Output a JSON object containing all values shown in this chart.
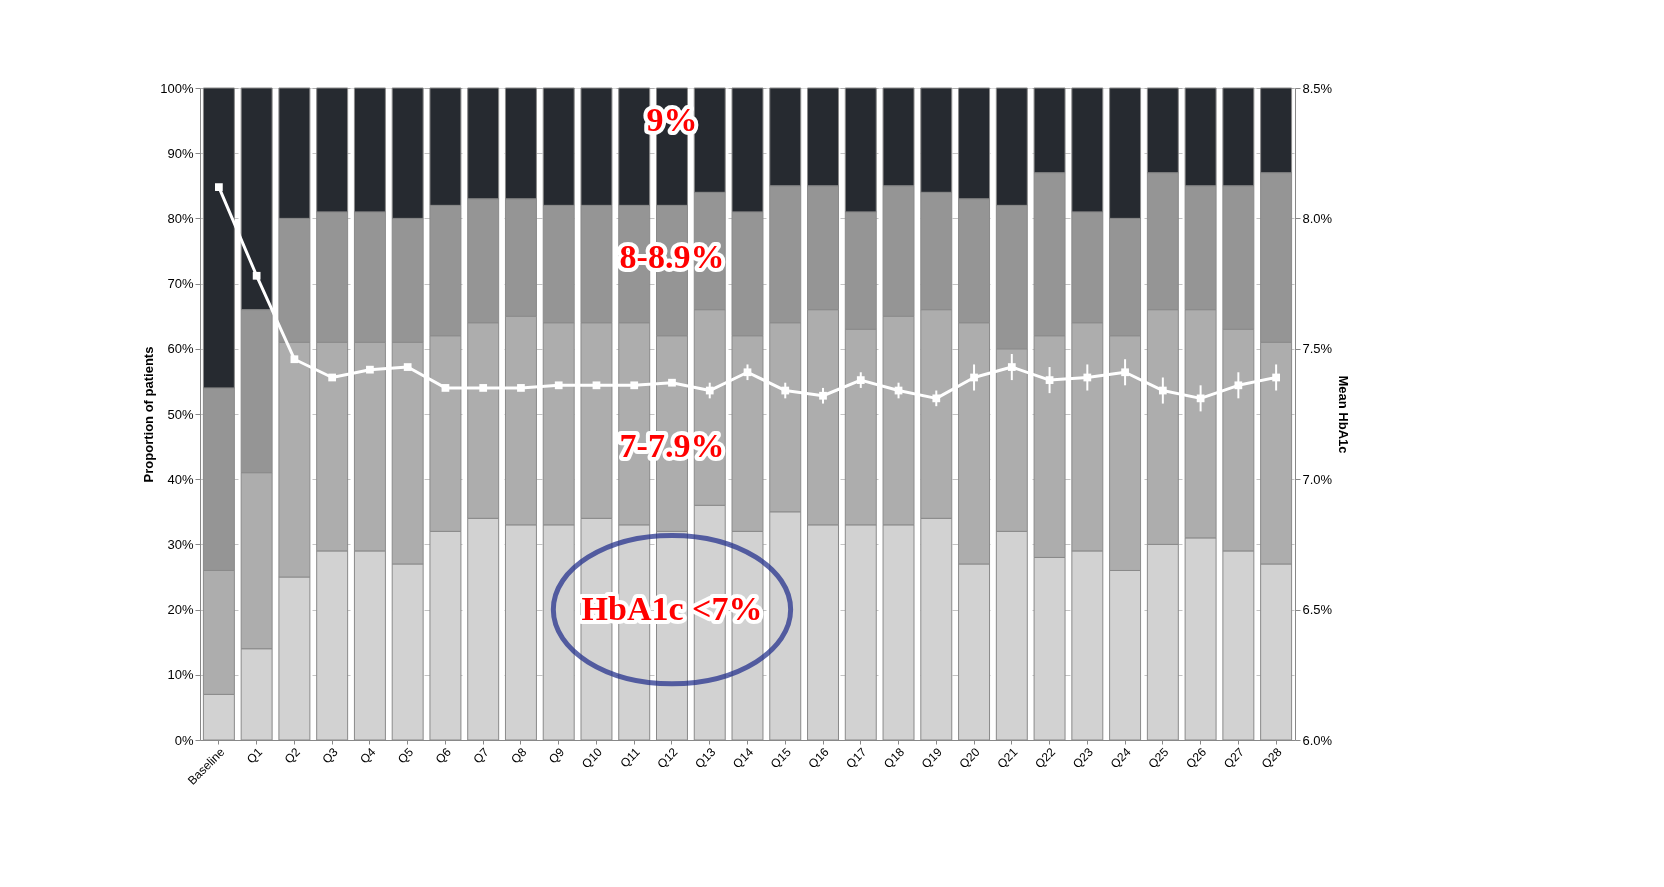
{
  "chart_data": {
    "type": "bar",
    "stacked": true,
    "xlabel": null,
    "ylabel": "Proportion of patients",
    "y2label": "Mean HbA1c",
    "categories": [
      "Baseline",
      "Q1",
      "Q2",
      "Q3",
      "Q4",
      "Q5",
      "Q6",
      "Q7",
      "Q8",
      "Q9",
      "Q10",
      "Q11",
      "Q12",
      "Q13",
      "Q14",
      "Q15",
      "Q16",
      "Q17",
      "Q18",
      "Q19",
      "Q20",
      "Q21",
      "Q22",
      "Q23",
      "Q24",
      "Q25",
      "Q26",
      "Q27",
      "Q28"
    ],
    "series": [
      {
        "color": "#d2d2d2",
        "values": [
          7,
          14,
          25,
          29,
          29,
          27,
          32,
          34,
          33,
          33,
          34,
          33,
          32,
          36,
          32,
          35,
          33,
          33,
          33,
          34,
          27,
          32,
          28,
          29,
          26,
          30,
          31,
          29,
          27
        ]
      },
      {
        "color": "#adadad",
        "values": [
          19,
          27,
          36,
          32,
          32,
          34,
          30,
          30,
          32,
          31,
          30,
          31,
          30,
          30,
          30,
          29,
          33,
          30,
          32,
          32,
          37,
          28,
          34,
          35,
          36,
          36,
          35,
          34,
          34
        ]
      },
      {
        "color": "#959595",
        "values": [
          28,
          25,
          19,
          20,
          20,
          19,
          20,
          19,
          18,
          18,
          18,
          18,
          20,
          18,
          19,
          21,
          19,
          18,
          20,
          18,
          19,
          22,
          25,
          17,
          18,
          21,
          19,
          22,
          26
        ]
      },
      {
        "color": "#262a30",
        "values": [
          46,
          34,
          20,
          19,
          19,
          20,
          18,
          17,
          17,
          18,
          18,
          18,
          18,
          16,
          19,
          15,
          15,
          19,
          15,
          16,
          17,
          18,
          13,
          19,
          20,
          13,
          15,
          15,
          13
        ]
      },
      {
        "type": "line",
        "axis": "y2",
        "color": "#ffffff",
        "marker": "square",
        "values": [
          8.12,
          7.78,
          7.46,
          7.39,
          7.42,
          7.43,
          7.35,
          7.35,
          7.35,
          7.36,
          7.36,
          7.36,
          7.37,
          7.34,
          7.41,
          7.34,
          7.32,
          7.38,
          7.34,
          7.31,
          7.39,
          7.43,
          7.38,
          7.39,
          7.41,
          7.34,
          7.31,
          7.36,
          7.39
        ],
        "errors": [
          null,
          null,
          null,
          null,
          null,
          null,
          null,
          null,
          null,
          null,
          null,
          null,
          null,
          0.03,
          0.03,
          0.03,
          0.03,
          0.03,
          0.03,
          0.03,
          0.05,
          0.05,
          0.05,
          0.05,
          0.05,
          0.05,
          0.05,
          0.05,
          0.05
        ]
      }
    ],
    "ylim": [
      0,
      100
    ],
    "yticks": [
      {
        "value": 0,
        "label": "0%"
      },
      {
        "value": 10,
        "label": "10%"
      },
      {
        "value": 20,
        "label": "20%"
      },
      {
        "value": 30,
        "label": "30%"
      },
      {
        "value": 40,
        "label": "40%"
      },
      {
        "value": 50,
        "label": "50%"
      },
      {
        "value": 60,
        "label": "60%"
      },
      {
        "value": 70,
        "label": "70%"
      },
      {
        "value": 80,
        "label": "80%"
      },
      {
        "value": 90,
        "label": "90%"
      },
      {
        "value": 100,
        "label": "100%"
      }
    ],
    "y2lim": [
      6.0,
      8.5
    ],
    "y2ticks": [
      {
        "value": 6.0,
        "label": "6.0%"
      },
      {
        "value": 6.5,
        "label": "6.5%"
      },
      {
        "value": 7.0,
        "label": "7.0%"
      },
      {
        "value": 7.5,
        "label": "7.5%"
      },
      {
        "value": 8.0,
        "label": "8.0%"
      },
      {
        "value": 8.5,
        "label": "8.5%"
      }
    ],
    "grid": "y",
    "annotations": [
      "9%",
      "8-8.9%",
      "7-7.9%",
      "HbA1c <7%"
    ]
  }
}
